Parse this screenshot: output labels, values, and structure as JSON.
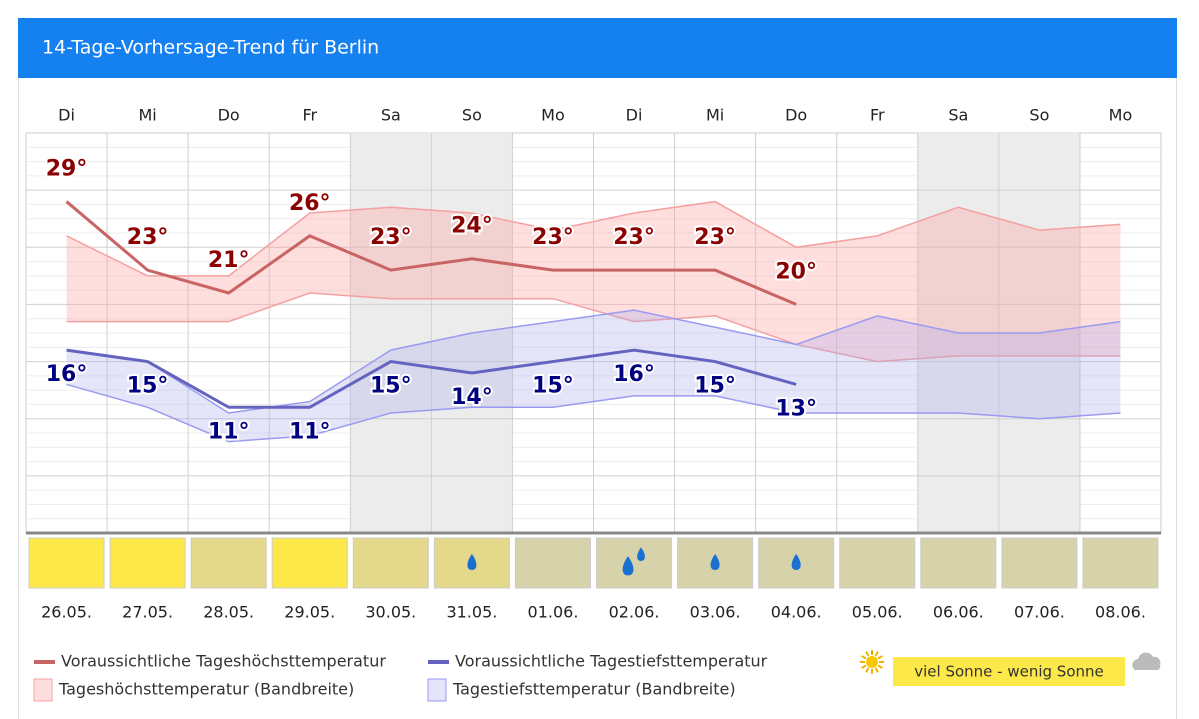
{
  "chart_data": {
    "type": "line",
    "title": "14-Tage-Vorhersage-Trend für Berlin",
    "categories": [
      "Di",
      "Mi",
      "Do",
      "Fr",
      "Sa",
      "So",
      "Mo",
      "Di",
      "Mi",
      "Do",
      "Fr",
      "Sa",
      "So",
      "Mo"
    ],
    "dates": [
      "26.05.",
      "27.05.",
      "28.05.",
      "29.05.",
      "30.05.",
      "31.05.",
      "01.06.",
      "02.06.",
      "03.06.",
      "04.06.",
      "05.06.",
      "06.06.",
      "07.06.",
      "08.06."
    ],
    "shaded": [
      false,
      false,
      false,
      false,
      true,
      true,
      false,
      false,
      false,
      false,
      false,
      true,
      true,
      false
    ],
    "ylim": [
      0,
      35
    ],
    "series": [
      {
        "name": "Voraussichtliche Tageshöchsttemperatur",
        "color": "#c86464",
        "label_color": "#8b0000",
        "values": [
          29,
          23,
          21,
          26,
          23,
          24,
          23,
          23,
          23,
          20,
          null,
          null,
          null,
          null
        ],
        "value_labels": [
          "29°",
          "23°",
          "21°",
          "26°",
          "23°",
          "24°",
          "23°",
          "23°",
          "23°",
          "20°",
          null,
          null,
          null,
          null
        ]
      },
      {
        "name": "Voraussichtliche Tagestiefsttemperatur",
        "color": "#6464c0",
        "label_color": "#000080",
        "values": [
          16,
          15,
          11,
          11,
          15,
          14,
          15,
          16,
          15,
          13,
          null,
          null,
          null,
          null
        ],
        "value_labels": [
          "16°",
          "15°",
          "11°",
          "11°",
          "15°",
          "14°",
          "15°",
          "16°",
          "15°",
          "13°",
          null,
          null,
          null,
          null
        ]
      }
    ],
    "bands": [
      {
        "name": "Tageshöchsttemperatur (Bandbreite)",
        "color": "#f4a0a0",
        "fill": "rgba(255,160,160,0.35)",
        "upper": [
          26,
          22.5,
          22.5,
          28,
          28.5,
          28,
          26.5,
          28,
          29,
          25,
          26,
          28.5,
          26.5,
          27
        ],
        "lower": [
          18.5,
          18.5,
          18.5,
          21,
          20.5,
          20.5,
          20.5,
          18.5,
          19,
          16.5,
          15,
          15.5,
          15.5,
          15.5
        ]
      },
      {
        "name": "Tagestiefsttemperatur (Bandbreite)",
        "color": "#9a9af0",
        "fill": "rgba(170,170,240,0.3)",
        "upper": [
          16,
          15,
          10.5,
          11.5,
          16,
          17.5,
          18.5,
          19.5,
          18,
          16.5,
          19,
          17.5,
          17.5,
          18.5
        ],
        "lower": [
          13,
          11,
          8,
          8.5,
          10.5,
          11,
          11,
          12,
          12,
          10.5,
          10.5,
          10.5,
          10,
          10.5
        ]
      }
    ],
    "weather": {
      "colors": [
        "#fde84a",
        "#fde84a",
        "#e4d88a",
        "#fde84a",
        "#e4d88a",
        "#e4d88a",
        "#d6d2aa",
        "#d6d2aa",
        "#d6d2aa",
        "#d6d2aa",
        "#d6d2aa",
        "#d6d2aa",
        "#d6d2aa",
        "#d6d2aa"
      ],
      "rain": [
        0,
        0,
        0,
        0,
        0,
        1,
        0,
        2,
        1,
        1,
        0,
        0,
        0,
        0
      ]
    },
    "legend_scale": "viel Sonne - wenig Sonne"
  }
}
